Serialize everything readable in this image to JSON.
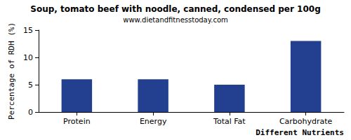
{
  "chart_data": {
    "type": "bar",
    "title": "Soup, tomato beef with noodle, canned, condensed per 100g",
    "subtitle": "www.dietandfitnesstoday.com",
    "x_label": "Different Nutrients",
    "y_label": "Percentage of RDH (%)",
    "categories": [
      "Protein",
      "Energy",
      "Total Fat",
      "Carbohydrate"
    ],
    "values": [
      6,
      6,
      5,
      13
    ],
    "color": "#233f8f",
    "ylim": [
      0,
      15
    ],
    "yticks": [
      0,
      5,
      10,
      15
    ],
    "grid": false,
    "data_labels": false
  }
}
